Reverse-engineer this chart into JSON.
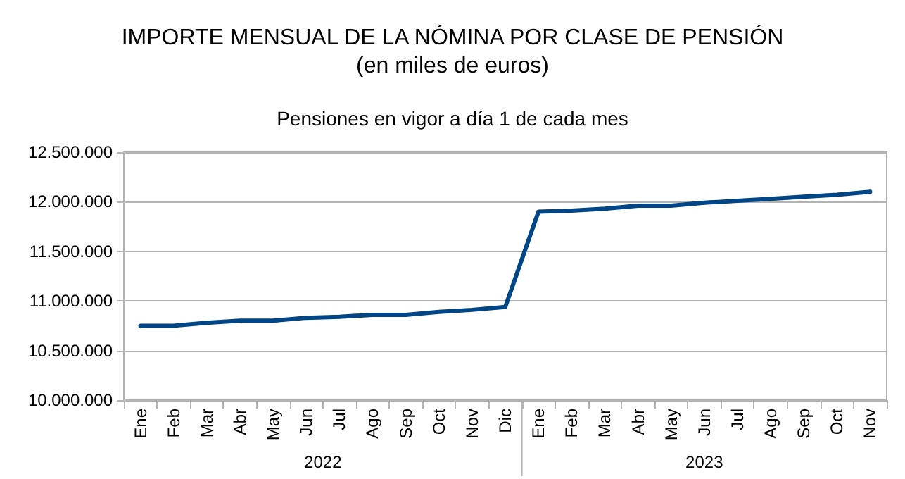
{
  "chart_data": {
    "type": "line",
    "title": "IMPORTE MENSUAL DE LA NÓMINA POR CLASE DE PENSIÓN\n(en miles de euros)",
    "subtitle": "Pensiones en vigor a día 1 de cada mes",
    "categories": [
      "Ene",
      "Feb",
      "Mar",
      "Abr",
      "May",
      "Jun",
      "Jul",
      "Ago",
      "Sep",
      "Oct",
      "Nov",
      "Dic",
      "Ene",
      "Feb",
      "Mar",
      "Abr",
      "May",
      "Jun",
      "Jul",
      "Ago",
      "Sep",
      "Oct",
      "Nov"
    ],
    "series": [
      {
        "color": "#004586",
        "values": [
          10750000,
          10750000,
          10780000,
          10800000,
          10800000,
          10830000,
          10840000,
          10860000,
          10860000,
          10890000,
          10910000,
          10940000,
          11900000,
          11910000,
          11930000,
          11960000,
          11960000,
          11990000,
          12010000,
          12030000,
          12050000,
          12070000,
          12100000
        ]
      }
    ],
    "ylim": [
      10000000,
      12500000
    ],
    "yticks": [
      {
        "value": 10000000,
        "label": "10.000.000"
      },
      {
        "value": 10500000,
        "label": "10.500.000"
      },
      {
        "value": 11000000,
        "label": "11.000.000"
      },
      {
        "value": 11500000,
        "label": "11.500.000"
      },
      {
        "value": 12000000,
        "label": "12.000.000"
      },
      {
        "value": 12500000,
        "label": "12.500.000"
      }
    ],
    "annotations": [
      "2022",
      "2023"
    ],
    "grid": "y",
    "marker": "none",
    "line_style": "solid"
  }
}
